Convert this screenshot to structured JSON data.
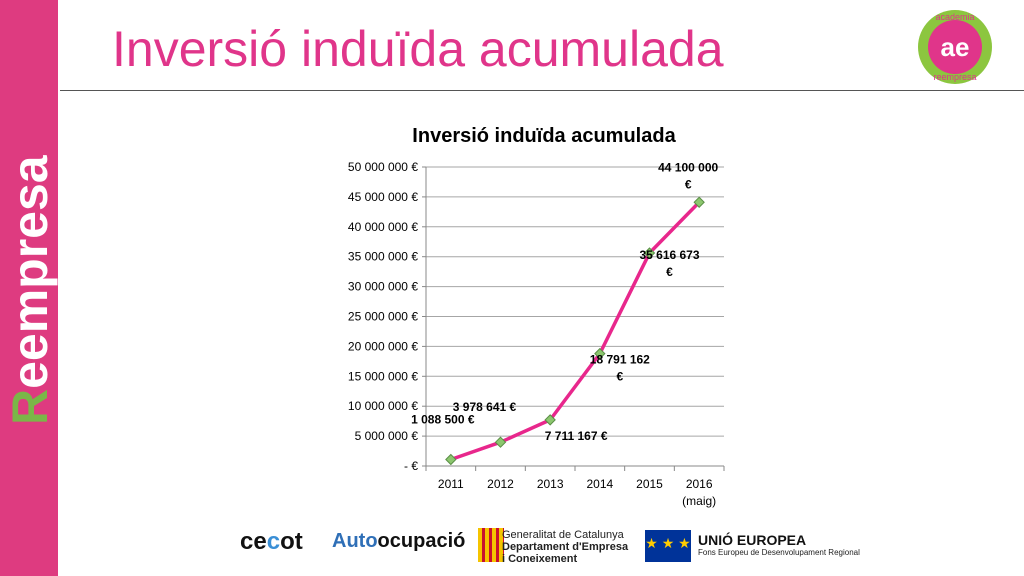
{
  "slide": {
    "title": "Inversió induïda acumulada",
    "sidebar_brand": {
      "first": "R",
      "rest": "eempresa"
    },
    "corner_logo": {
      "top": "academia",
      "mark": "ae",
      "bottom": "reempresa"
    }
  },
  "chart_data": {
    "type": "line",
    "title": "Inversió induïda acumulada",
    "categories": [
      "2011",
      "2012",
      "2013",
      "2014",
      "2015",
      "2016\n(maig)"
    ],
    "x_tick_labels": [
      [
        "2011"
      ],
      [
        "2012"
      ],
      [
        "2013"
      ],
      [
        "2014"
      ],
      [
        "2015"
      ],
      [
        "2016",
        "(maig)"
      ]
    ],
    "series": [
      {
        "values": [
          1088500,
          3978641,
          7711167,
          18791162,
          35616673,
          44100000
        ]
      }
    ],
    "data_labels": [
      [
        "1 088 500 €"
      ],
      [
        "3 978 641 €"
      ],
      [
        "7 711 167 €"
      ],
      [
        "18 791 162",
        "€"
      ],
      [
        "35 616 673",
        "€"
      ],
      [
        "44 100 000",
        "€"
      ]
    ],
    "y_tick_labels": [
      "-   €",
      "5 000 000 €",
      "10 000 000 €",
      "15 000 000 €",
      "20 000 000 €",
      "25 000 000 €",
      "30 000 000 €",
      "35 000 000 €",
      "40 000 000 €",
      "45 000 000 €",
      "50 000 000 €"
    ],
    "ylim": [
      0,
      50000000
    ],
    "y_step": 5000000,
    "grid": true,
    "colors": {
      "line": "#e8278c",
      "marker": "#8cc66e",
      "marker_edge": "#5a8f46",
      "grid": "#a6a6a6"
    }
  },
  "footer": {
    "cecot": {
      "a": "ce",
      "b": "c",
      "c": "ot"
    },
    "autoocupacio": {
      "a": "Auto",
      "b": "ocupació"
    },
    "generalitat": [
      "Generalitat de Catalunya",
      "Departament d'Empresa",
      "i Coneixement"
    ],
    "eu": {
      "title": "UNIÓ EUROPEA",
      "subtitle": "Fons Europeu de Desenvolupament Regional"
    }
  }
}
